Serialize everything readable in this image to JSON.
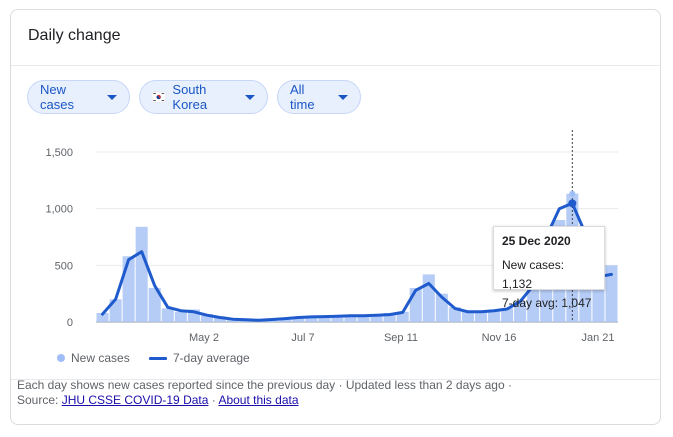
{
  "header": {
    "title": "Daily change"
  },
  "filters": {
    "metric": "New cases",
    "country": "South Korea",
    "range": "All time"
  },
  "colors": {
    "bars": "#a8c3f5",
    "line": "#1f5bcd",
    "chip_text": "#1a56c4",
    "chip_bg": "#e8f0fe"
  },
  "chart_data": {
    "type": "bar",
    "y_ticks": [
      "1,500",
      "1,000",
      "500",
      "0"
    ],
    "x_ticks": [
      "May 2",
      "Jul 7",
      "Sep 11",
      "Nov 16",
      "Jan 21"
    ],
    "ylim": [
      0,
      1500
    ],
    "series": [
      {
        "name": "New cases",
        "type": "bar",
        "values": [
          80,
          200,
          580,
          840,
          300,
          120,
          90,
          110,
          70,
          50,
          30,
          20,
          15,
          25,
          30,
          40,
          50,
          45,
          50,
          60,
          55,
          70,
          80,
          90,
          300,
          420,
          250,
          130,
          100,
          90,
          110,
          120,
          180,
          300,
          600,
          900,
          1132,
          700,
          300,
          500
        ]
      },
      {
        "name": "7-day average",
        "type": "line",
        "values": [
          70,
          200,
          550,
          620,
          320,
          130,
          100,
          90,
          60,
          40,
          25,
          20,
          15,
          22,
          30,
          40,
          45,
          48,
          50,
          55,
          55,
          60,
          65,
          85,
          280,
          340,
          220,
          120,
          90,
          90,
          100,
          115,
          180,
          320,
          750,
          1000,
          1047,
          780,
          400,
          420
        ]
      }
    ],
    "tooltip": {
      "date": "25 Dec 2020",
      "new_cases_label": "New cases:",
      "new_cases": "1,132",
      "avg_label": "7-day avg:",
      "avg": "1,047"
    },
    "legend": [
      "New cases",
      "7-day average"
    ]
  },
  "footer": {
    "note": "Each day shows new cases reported since the previous day · Updated less than 2 days ago ·",
    "source_label": "Source:",
    "source_link": "JHU CSSE COVID-19 Data",
    "separator": "·",
    "about_link": "About this data"
  }
}
